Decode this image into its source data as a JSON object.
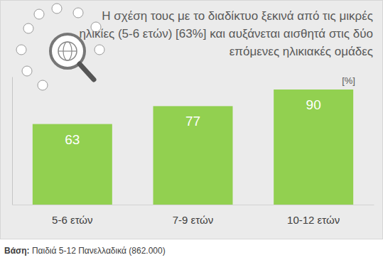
{
  "chart_data": {
    "type": "bar",
    "title": "Η σχέση τους με το διαδίκτυο ξεκινά από τις μικρές ηλικίες (5-6 ετών) [63%] και αυξάνεται αισθητά στις δύο επόμενες ηλικιακές ομάδες",
    "ylabel": "[%]",
    "annotations": [
      "Βάση: Παιδιά 5-12 Πανελλαδικά (862.000)"
    ],
    "categories": [
      "5-6 ετών",
      "7-9 ετών",
      "10-12 ετών"
    ],
    "values": [
      63,
      77,
      90
    ],
    "color": "#92d050",
    "ylim": [
      0,
      100
    ],
    "yticks": [],
    "tick_labels": "x",
    "data_labels": true,
    "grid": false
  }
}
